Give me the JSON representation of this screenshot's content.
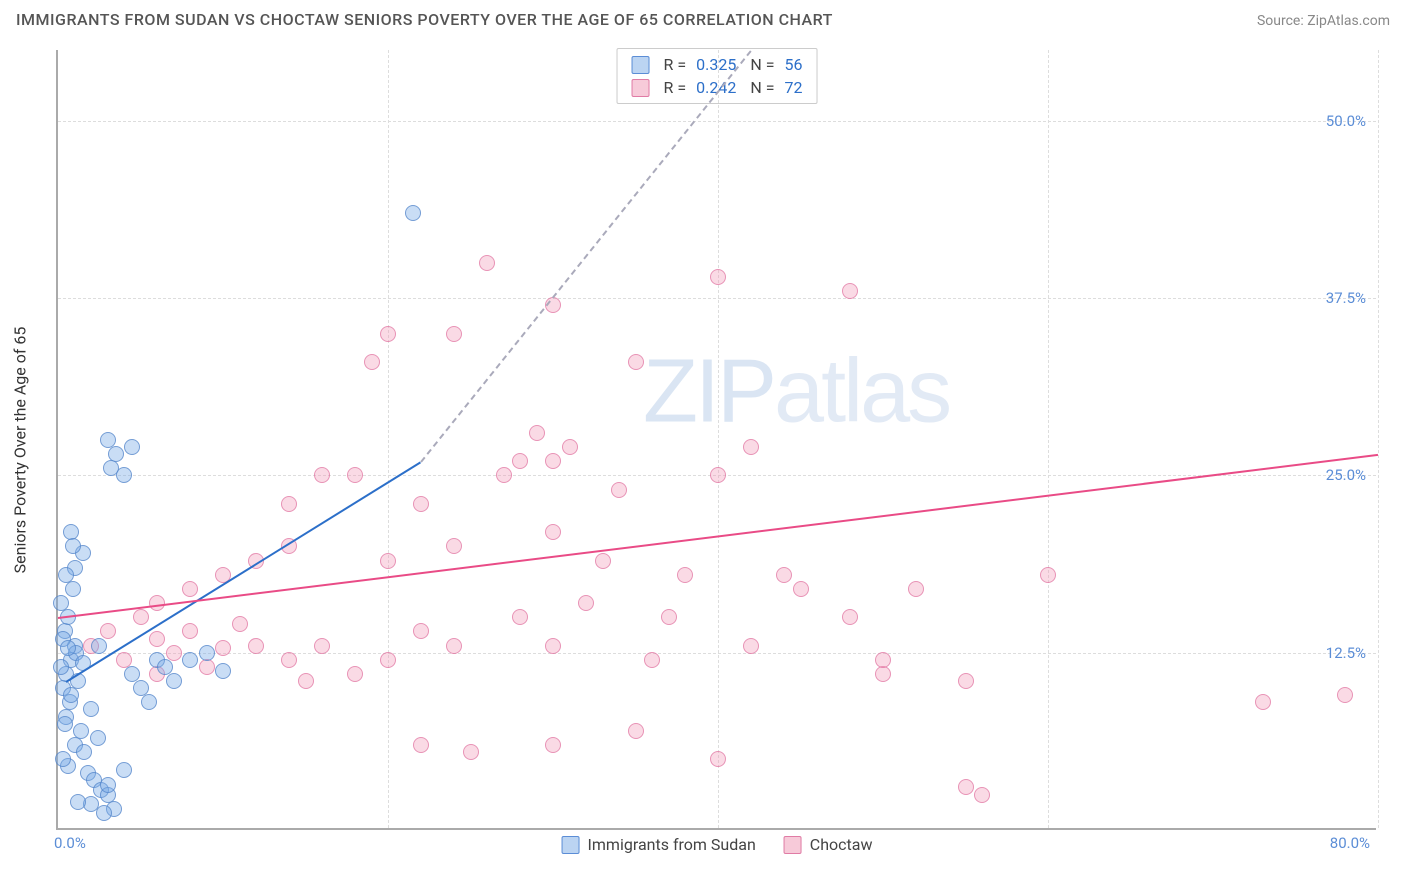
{
  "title": "IMMIGRANTS FROM SUDAN VS CHOCTAW SENIORS POVERTY OVER THE AGE OF 65 CORRELATION CHART",
  "source": "Source: ZipAtlas.com",
  "watermark_a": "ZIP",
  "watermark_b": "atlas",
  "chart": {
    "type": "scatter",
    "background_color": "#ffffff",
    "grid_color": "#dddddd",
    "axis_color": "#aaaaaa",
    "y_label": "Seniors Poverty Over the Age of 65",
    "xlim": [
      0,
      80
    ],
    "ylim": [
      0,
      55
    ],
    "x_ticks": [
      0,
      20,
      40,
      60,
      80
    ],
    "x_tick_labels": {
      "0": "0.0%",
      "80": "80.0%"
    },
    "y_ticks": [
      12.5,
      25,
      37.5,
      50
    ],
    "y_tick_labels": {
      "12.5": "12.5%",
      "25": "25.0%",
      "37.5": "37.5%",
      "50": "50.0%"
    },
    "tick_label_color": "#5b8dd6",
    "tick_fontsize": 15,
    "label_fontsize": 16,
    "title_fontsize": 16
  },
  "series": {
    "blue": {
      "label": "Immigrants from Sudan",
      "color_fill": "rgba(120,170,230,0.4)",
      "color_stroke": "rgba(80,130,200,0.7)",
      "marker_size": 16,
      "R": "0.325",
      "N": "56",
      "trend": {
        "x1": 0.5,
        "y1": 10.5,
        "x2": 22,
        "y2": 26,
        "color": "#2c6fc9",
        "dash_after": true,
        "dash_x2": 42,
        "dash_y2": 55
      },
      "points": [
        [
          0.3,
          10
        ],
        [
          0.5,
          11
        ],
        [
          0.8,
          12
        ],
        [
          1,
          13
        ],
        [
          0.4,
          14
        ],
        [
          0.6,
          15
        ],
        [
          0.2,
          16
        ],
        [
          0.9,
          17
        ],
        [
          0.5,
          8
        ],
        [
          0.7,
          9
        ],
        [
          1.2,
          10.5
        ],
        [
          0.3,
          13.5
        ],
        [
          1.1,
          12.5
        ],
        [
          0.2,
          11.5
        ],
        [
          0.8,
          9.5
        ],
        [
          1,
          6
        ],
        [
          1.4,
          7
        ],
        [
          2,
          8.5
        ],
        [
          1.6,
          5.5
        ],
        [
          2.4,
          6.5
        ],
        [
          0.6,
          4.5
        ],
        [
          1.8,
          4
        ],
        [
          2.2,
          3.5
        ],
        [
          2.6,
          2.8
        ],
        [
          3,
          2.5
        ],
        [
          2,
          1.8
        ],
        [
          3.4,
          1.5
        ],
        [
          2.8,
          1.2
        ],
        [
          1.5,
          11.8
        ],
        [
          0.4,
          7.5
        ],
        [
          3,
          27.5
        ],
        [
          3.5,
          26.5
        ],
        [
          4,
          25
        ],
        [
          4.5,
          27
        ],
        [
          3.2,
          25.5
        ],
        [
          1,
          18.5
        ],
        [
          1.5,
          19.5
        ],
        [
          0.8,
          21
        ],
        [
          0.3,
          5
        ],
        [
          0.6,
          12.8
        ],
        [
          21.5,
          43.5
        ],
        [
          4.5,
          11
        ],
        [
          6,
          12
        ],
        [
          5,
          10
        ],
        [
          6.5,
          11.5
        ],
        [
          5.5,
          9
        ],
        [
          7,
          10.5
        ],
        [
          8,
          12
        ],
        [
          10,
          11.2
        ],
        [
          9,
          12.5
        ],
        [
          3,
          3.2
        ],
        [
          4,
          4.2
        ],
        [
          1.2,
          2
        ],
        [
          0.5,
          18
        ],
        [
          0.9,
          20
        ],
        [
          2.5,
          13
        ]
      ]
    },
    "pink": {
      "label": "Choctaw",
      "color_fill": "rgba(240,150,180,0.35)",
      "color_stroke": "rgba(220,100,150,0.6)",
      "marker_size": 16,
      "R": "0.242",
      "N": "72",
      "trend": {
        "x1": 0,
        "y1": 15,
        "x2": 80,
        "y2": 26.5,
        "color": "#e94b86"
      },
      "points": [
        [
          2,
          13
        ],
        [
          3,
          14
        ],
        [
          4,
          12
        ],
        [
          5,
          15
        ],
        [
          6,
          13.5
        ],
        [
          7,
          12.5
        ],
        [
          6,
          11
        ],
        [
          8,
          14
        ],
        [
          9,
          11.5
        ],
        [
          10,
          12.8
        ],
        [
          11,
          14.5
        ],
        [
          12,
          13
        ],
        [
          6,
          16
        ],
        [
          8,
          17
        ],
        [
          10,
          18
        ],
        [
          12,
          19
        ],
        [
          14,
          20
        ],
        [
          14,
          12
        ],
        [
          16,
          13
        ],
        [
          15,
          10.5
        ],
        [
          18,
          11
        ],
        [
          20,
          12
        ],
        [
          22,
          14
        ],
        [
          24,
          13
        ],
        [
          20,
          19
        ],
        [
          18,
          25
        ],
        [
          19,
          33
        ],
        [
          20,
          35
        ],
        [
          22,
          23
        ],
        [
          24,
          20
        ],
        [
          24,
          35
        ],
        [
          26,
          40
        ],
        [
          27,
          25
        ],
        [
          28,
          26
        ],
        [
          29,
          28
        ],
        [
          30,
          26
        ],
        [
          28,
          15
        ],
        [
          30,
          13
        ],
        [
          30,
          37
        ],
        [
          31,
          27
        ],
        [
          32,
          16
        ],
        [
          33,
          19
        ],
        [
          34,
          24
        ],
        [
          35,
          33
        ],
        [
          36,
          12
        ],
        [
          37,
          15
        ],
        [
          38,
          18
        ],
        [
          40,
          39
        ],
        [
          42,
          13
        ],
        [
          44,
          18
        ],
        [
          40,
          25
        ],
        [
          42,
          27
        ],
        [
          45,
          17
        ],
        [
          48,
          15
        ],
        [
          50,
          11
        ],
        [
          35,
          7
        ],
        [
          30,
          6
        ],
        [
          25,
          5.5
        ],
        [
          22,
          6
        ],
        [
          40,
          5
        ],
        [
          55,
          10.5
        ],
        [
          52,
          17
        ],
        [
          55,
          3
        ],
        [
          60,
          18
        ],
        [
          48,
          38
        ],
        [
          50,
          12
        ],
        [
          30,
          21
        ],
        [
          73,
          9
        ],
        [
          56,
          2.5
        ],
        [
          16,
          25
        ],
        [
          14,
          23
        ],
        [
          78,
          9.5
        ]
      ]
    }
  },
  "legend_top": {
    "r_label": "R =",
    "n_label": "N ="
  },
  "legend_bottom": {}
}
